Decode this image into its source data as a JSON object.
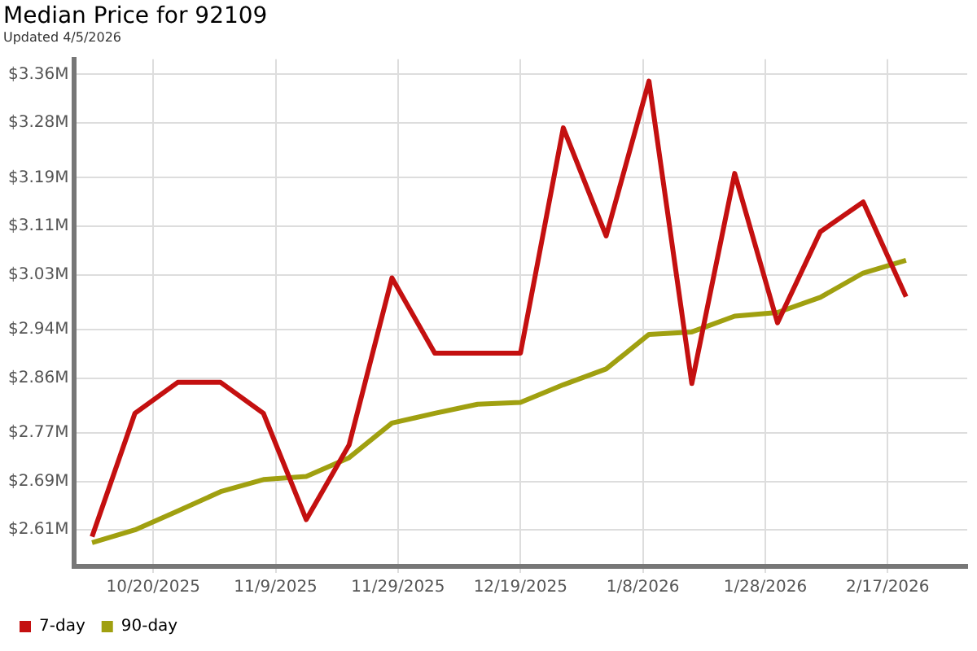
{
  "chart_data": {
    "type": "line",
    "title": "Median Price for 92109",
    "subtitle": "Updated 4/5/2026",
    "x": [
      "2025-10-10",
      "2025-10-17",
      "2025-10-24",
      "2025-10-31",
      "2025-11-07",
      "2025-11-14",
      "2025-11-21",
      "2025-11-28",
      "2025-12-05",
      "2025-12-12",
      "2025-12-19",
      "2025-12-26",
      "2026-01-02",
      "2026-01-09",
      "2026-01-16",
      "2026-01-23",
      "2026-01-30",
      "2026-02-06",
      "2026-02-13",
      "2026-02-20"
    ],
    "series": [
      {
        "name": "7-day",
        "color": "#c41010",
        "values": [
          2.599,
          2.802,
          2.853,
          2.853,
          2.802,
          2.627,
          2.75,
          3.025,
          2.901,
          2.901,
          2.901,
          3.272,
          3.094,
          3.349,
          2.851,
          3.197,
          2.951,
          3.101,
          3.15,
          2.994
        ]
      },
      {
        "name": "90-day",
        "color": "#a0a010",
        "values": [
          2.589,
          2.61,
          2.641,
          2.673,
          2.693,
          2.698,
          2.729,
          2.786,
          2.802,
          2.817,
          2.82,
          2.849,
          2.875,
          2.932,
          2.936,
          2.962,
          2.968,
          2.993,
          3.033,
          3.054
        ]
      }
    ],
    "xlim": [
      "2025-10-07",
      "2026-03-02"
    ],
    "xticks": [
      {
        "value": "2025-10-20",
        "label": "10/20/2025"
      },
      {
        "value": "2025-11-09",
        "label": "11/9/2025"
      },
      {
        "value": "2025-11-29",
        "label": "11/29/2025"
      },
      {
        "value": "2025-12-19",
        "label": "12/19/2025"
      },
      {
        "value": "2026-01-08",
        "label": "1/8/2026"
      },
      {
        "value": "2026-01-28",
        "label": "1/28/2026"
      },
      {
        "value": "2026-02-17",
        "label": "2/17/2026"
      }
    ],
    "ylim": [
      2.55,
      3.385
    ],
    "yticks": [
      {
        "value": 2.61,
        "label": "$2.61M"
      },
      {
        "value": 2.69,
        "label": "$2.69M"
      },
      {
        "value": 2.77,
        "label": "$2.77M"
      },
      {
        "value": 2.86,
        "label": "$2.86M"
      },
      {
        "value": 2.94,
        "label": "$2.94M"
      },
      {
        "value": 3.03,
        "label": "$3.03M"
      },
      {
        "value": 3.11,
        "label": "$3.11M"
      },
      {
        "value": 3.19,
        "label": "$3.19M"
      },
      {
        "value": 3.28,
        "label": "$3.28M"
      },
      {
        "value": 3.36,
        "label": "$3.36M"
      }
    ],
    "grid": true,
    "legend": "bottom left",
    "marker": "none",
    "line_style": "solid"
  }
}
